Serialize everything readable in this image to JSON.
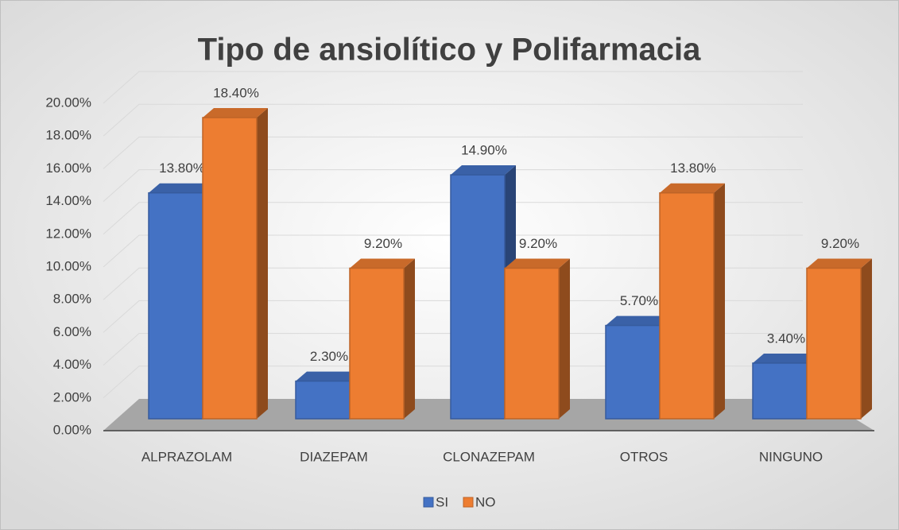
{
  "chart_data": {
    "type": "bar",
    "title": "Tipo de ansiolítico y Polifarmacia",
    "categories": [
      "ALPRAZOLAM",
      "DIAZEPAM",
      "CLONAZEPAM",
      "OTROS",
      "NINGUNO"
    ],
    "series": [
      {
        "name": "SI",
        "color": "#4472c4",
        "values": [
          13.8,
          2.3,
          14.9,
          5.7,
          3.4
        ],
        "value_labels": [
          "13.80%",
          "2.30%",
          "14.90%",
          "5.70%",
          "3.40%"
        ]
      },
      {
        "name": "NO",
        "color": "#ed7d31",
        "values": [
          18.4,
          9.2,
          9.2,
          13.8,
          9.2
        ],
        "value_labels": [
          "18.40%",
          "9.20%",
          "9.20%",
          "13.80%",
          "9.20%"
        ]
      }
    ],
    "ylim": [
      0,
      20
    ],
    "yticks": [
      {
        "value": 0,
        "label": "0.00%"
      },
      {
        "value": 2,
        "label": "2.00%"
      },
      {
        "value": 4,
        "label": "4.00%"
      },
      {
        "value": 6,
        "label": "6.00%"
      },
      {
        "value": 8,
        "label": "8.00%"
      },
      {
        "value": 10,
        "label": "10.00%"
      },
      {
        "value": 12,
        "label": "12.00%"
      },
      {
        "value": 14,
        "label": "14.00%"
      },
      {
        "value": 16,
        "label": "16.00%"
      },
      {
        "value": 18,
        "label": "18.00%"
      },
      {
        "value": 20,
        "label": "20.00%"
      }
    ],
    "grid": true,
    "legend": "bottom"
  }
}
